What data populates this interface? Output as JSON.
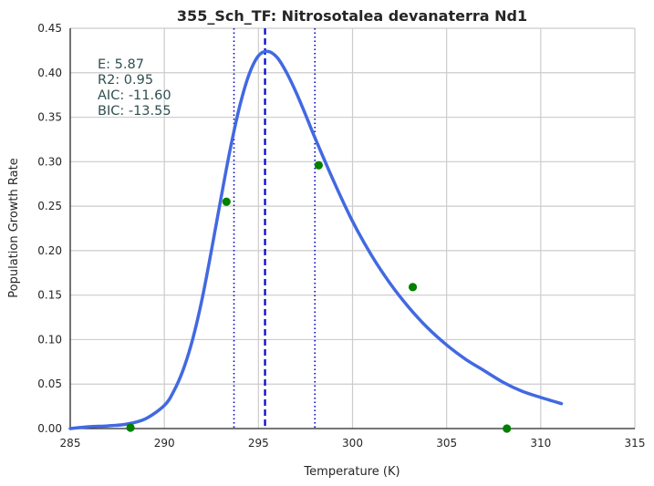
{
  "chart_data": {
    "type": "line",
    "title": "355_Sch_TF: Nitrosotalea devanaterra Nd1",
    "xlabel": "Temperature (K)",
    "ylabel": "Population Growth Rate",
    "xlim": [
      285,
      315
    ],
    "ylim": [
      0,
      0.45
    ],
    "xticks": [
      285,
      290,
      295,
      300,
      305,
      310,
      315
    ],
    "yticks": [
      "0.00",
      "0.05",
      "0.10",
      "0.15",
      "0.20",
      "0.25",
      "0.30",
      "0.35",
      "0.40",
      "0.45"
    ],
    "grid": true,
    "annotations": [
      "E:  5.87",
      "R2:  0.95",
      "AIC: -11.60",
      "BIC: -13.55"
    ],
    "series": [
      {
        "kind": "line",
        "color": "#4169e1",
        "x": [
          285.0,
          286.0,
          287.0,
          288.0,
          289.0,
          290.0,
          290.5,
          291.0,
          291.5,
          292.0,
          292.5,
          293.0,
          293.5,
          294.0,
          294.5,
          295.0,
          295.5,
          296.0,
          296.5,
          297.0,
          297.5,
          298.0,
          299.0,
          300.0,
          301.0,
          302.0,
          303.0,
          304.0,
          305.0,
          306.0,
          307.0,
          308.0,
          309.0,
          310.0,
          311.1
        ],
        "y": [
          0.0,
          0.002,
          0.003,
          0.005,
          0.011,
          0.026,
          0.042,
          0.066,
          0.1,
          0.145,
          0.2,
          0.258,
          0.314,
          0.362,
          0.398,
          0.419,
          0.424,
          0.417,
          0.4,
          0.378,
          0.353,
          0.327,
          0.278,
          0.233,
          0.195,
          0.163,
          0.136,
          0.113,
          0.094,
          0.078,
          0.065,
          0.052,
          0.042,
          0.035,
          0.028
        ]
      },
      {
        "kind": "points",
        "color": "#008000",
        "x": [
          288.2,
          293.3,
          298.2,
          303.2,
          308.2
        ],
        "y": [
          0.001,
          0.255,
          0.296,
          0.159,
          0.0
        ]
      }
    ],
    "vlines": [
      {
        "x": 295.35,
        "style": "dashed",
        "color": "#0000cd"
      },
      {
        "x": 293.7,
        "style": "dotted",
        "color": "#0000cd"
      },
      {
        "x": 298.0,
        "style": "dotted",
        "color": "#0000cd"
      }
    ]
  }
}
